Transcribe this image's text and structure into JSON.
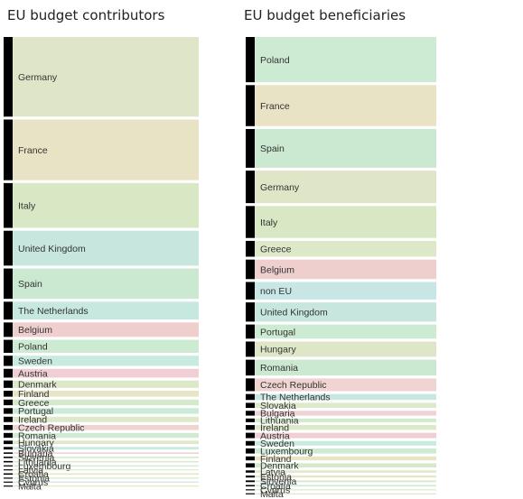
{
  "chart_data": [
    {
      "type": "bar",
      "title": "EU budget contributors",
      "categories": [
        "Germany",
        "France",
        "Italy",
        "United Kingdom",
        "Spain",
        "The Netherlands",
        "Belgium",
        "Poland",
        "Sweden",
        "Austria",
        "Denmark",
        "Finland",
        "Greece",
        "Portugal",
        "Ireland",
        "Czech Republic",
        "Romania",
        "Hungary",
        "Slovakia",
        "Bulgaria",
        "Slovenia",
        "Lithuania",
        "Luxembourg",
        "Latvia",
        "Croatia",
        "Estonia",
        "Cyprus",
        "Malta"
      ],
      "values": [
        28.1,
        21.4,
        15.8,
        12.3,
        10.7,
        6.3,
        5.1,
        4.6,
        3.6,
        3.1,
        2.6,
        2.1,
        2.0,
        2.0,
        1.9,
        1.8,
        1.7,
        1.2,
        0.9,
        0.5,
        0.5,
        0.5,
        0.4,
        0.3,
        0.5,
        0.2,
        0.2,
        0.1
      ],
      "colors": [
        "#dfe6c8",
        "#e8e3c5",
        "#d8e8c4",
        "#c7e7de",
        "#cbe8d1",
        "#c6e8de",
        "#efcece",
        "#cdebd2",
        "#c8eadf",
        "#efcfd3",
        "#dde8c8",
        "#e8e4c6",
        "#d5e9cb",
        "#c9ebd8",
        "#dde9c8",
        "#efd4d2",
        "#d0ebd2",
        "#dde9c9",
        "#c8eadf",
        "#efd3d4",
        "#d3eacc",
        "#dde9c8",
        "#cdebd3",
        "#dde9c8",
        "#e8e4c6",
        "#d5e9cb",
        "#c9ebd8",
        "#e8e4c6"
      ]
    },
    {
      "type": "bar",
      "title": "EU budget beneficiaries",
      "categories": [
        "Poland",
        "France",
        "Spain",
        "Germany",
        "Italy",
        "Greece",
        "Belgium",
        "non EU",
        "United Kingdom",
        "Portugal",
        "Hungary",
        "Romania",
        "Czech Republic",
        "The Netherlands",
        "Slovakia",
        "Bulgaria",
        "Lithuania",
        "Ireland",
        "Austria",
        "Sweden",
        "Luxembourg",
        "Finland",
        "Denmark",
        "Latvia",
        "Estonia",
        "Slovenia",
        "Croatia",
        "Cyprus",
        "Malta"
      ],
      "values": [
        16.0,
        14.5,
        13.7,
        11.5,
        11.3,
        5.6,
        6.9,
        6.2,
        6.8,
        5.0,
        5.4,
        5.6,
        4.5,
        2.1,
        1.8,
        1.7,
        1.3,
        1.7,
        1.9,
        1.6,
        1.8,
        1.4,
        1.5,
        0.8,
        0.7,
        0.6,
        0.5,
        0.3,
        0.2
      ],
      "colors": [
        "#cdebd2",
        "#e8e3c5",
        "#cbe8d1",
        "#dfe6c8",
        "#d8e8c4",
        "#dde8c8",
        "#efcece",
        "#c8e6e6",
        "#c7e7de",
        "#cdebd2",
        "#dfe6c8",
        "#cbe8d1",
        "#efd4d2",
        "#c6e8de",
        "#dde9c8",
        "#efd3d4",
        "#d3eacc",
        "#dde9c8",
        "#efcfd3",
        "#c8eadf",
        "#cdebd3",
        "#e8e4c6",
        "#d5e9cb",
        "#dde9c8",
        "#e8e4c6",
        "#d5e9cb",
        "#c9ebd8",
        "#dde9c8",
        "#e8e4c6"
      ]
    }
  ]
}
